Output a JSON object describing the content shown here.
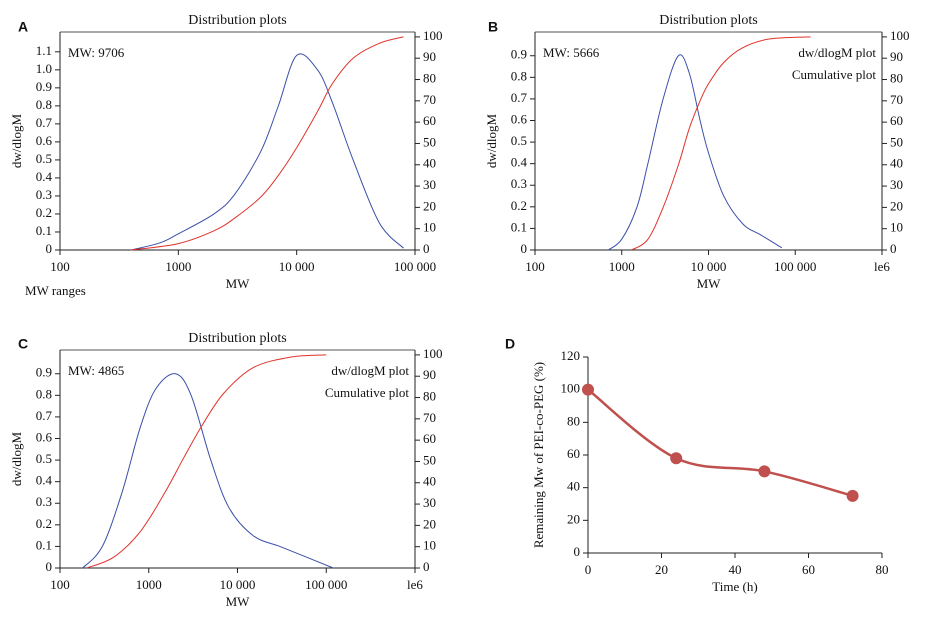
{
  "chart_data": [
    {
      "label": "A",
      "type": "line",
      "title": "Distribution plots",
      "annotation": "MW: 9706",
      "footnote": "MW ranges",
      "x_label": "MW",
      "y_label": "dw/dlogM",
      "log_x": true,
      "xlim": [
        100,
        100000
      ],
      "xticks": [
        100,
        1000,
        {
          "value": 10000,
          "label": "10 000"
        },
        {
          "value": 100000,
          "label": "100 000"
        }
      ],
      "ylim": [
        0,
        1.21
      ],
      "yticks": [
        0,
        0.1,
        0.2,
        0.3,
        0.4,
        0.5,
        0.6,
        0.7,
        0.8,
        0.9,
        {
          "value": 1,
          "label": "1.0"
        },
        1.1
      ],
      "y2lim": [
        0,
        102.3
      ],
      "y2ticks": [
        0,
        10,
        20,
        30,
        40,
        50,
        60,
        70,
        80,
        90,
        100
      ],
      "series": [
        {
          "color": "#3a4fa8",
          "x": [
            400,
            700,
            1000,
            2000,
            3000,
            5000,
            7000,
            10000,
            15000,
            20000,
            30000,
            50000,
            80000
          ],
          "values": [
            0,
            0.04,
            0.09,
            0.2,
            0.31,
            0.55,
            0.8,
            1.08,
            1.0,
            0.82,
            0.5,
            0.15,
            0.01
          ]
        },
        {
          "color": "#e0322b",
          "axis": "y2",
          "x": [
            400,
            1000,
            2000,
            3000,
            5000,
            7000,
            10000,
            15000,
            20000,
            30000,
            50000,
            80000
          ],
          "values": [
            0,
            3,
            9,
            15,
            25,
            35,
            48,
            65,
            78,
            90,
            97,
            100
          ]
        }
      ]
    },
    {
      "label": "B",
      "type": "line",
      "title": "Distribution plots",
      "annotation": "MW: 5666",
      "x_label": "MW",
      "y_label": "dw/dlogM",
      "log_x": true,
      "xlim": [
        100,
        1000000
      ],
      "xticks": [
        100,
        1000,
        {
          "value": 10000,
          "label": "10 000"
        },
        {
          "value": 100000,
          "label": "100 000"
        },
        {
          "value": 1000000,
          "label": "le6"
        }
      ],
      "ylim": [
        0,
        1.01
      ],
      "yticks": [
        0,
        0.1,
        0.2,
        0.3,
        0.4,
        0.5,
        0.6,
        0.7,
        0.8,
        0.9
      ],
      "y2lim": [
        0,
        102.3
      ],
      "y2ticks": [
        0,
        10,
        20,
        30,
        40,
        50,
        60,
        70,
        80,
        90,
        100
      ],
      "series": [
        {
          "name": "dw/dlogM plot",
          "color": "#3a4fa8",
          "x": [
            700,
            1000,
            1500,
            2000,
            3000,
            4500,
            6000,
            8000,
            10000,
            15000,
            25000,
            40000,
            70000
          ],
          "values": [
            0,
            0.05,
            0.2,
            0.4,
            0.7,
            0.9,
            0.82,
            0.6,
            0.45,
            0.25,
            0.12,
            0.07,
            0.01
          ]
        },
        {
          "name": "Cumulative plot",
          "color": "#e0322b",
          "axis": "y2",
          "x": [
            1300,
            2000,
            3000,
            4500,
            6000,
            8000,
            10000,
            15000,
            25000,
            50000,
            150000
          ],
          "values": [
            0,
            5,
            20,
            40,
            57,
            70,
            78,
            88,
            95,
            99,
            100
          ]
        }
      ]
    },
    {
      "label": "C",
      "type": "line",
      "title": "Distribution plots",
      "annotation": "MW: 4865",
      "x_label": "MW",
      "y_label": "dw/dlogM",
      "log_x": true,
      "xlim": [
        100,
        1000000
      ],
      "xticks": [
        100,
        1000,
        {
          "value": 10000,
          "label": "10 000"
        },
        {
          "value": 100000,
          "label": "100 000"
        },
        {
          "value": 1000000,
          "label": "le6"
        }
      ],
      "ylim": [
        0,
        1.01
      ],
      "yticks": [
        0,
        0.1,
        0.2,
        0.3,
        0.4,
        0.5,
        0.6,
        0.7,
        0.8,
        0.9
      ],
      "y2lim": [
        0,
        102.3
      ],
      "y2ticks": [
        0,
        10,
        20,
        30,
        40,
        50,
        60,
        70,
        80,
        90,
        100
      ],
      "series": [
        {
          "name": "dw/dlogM plot",
          "color": "#3a4fa8",
          "x": [
            180,
            300,
            500,
            800,
            1200,
            2000,
            3000,
            5000,
            8000,
            15000,
            30000,
            60000,
            120000
          ],
          "values": [
            0,
            0.1,
            0.35,
            0.65,
            0.83,
            0.9,
            0.8,
            0.5,
            0.28,
            0.15,
            0.1,
            0.05,
            0
          ]
        },
        {
          "name": "Cumulative plot",
          "color": "#e0322b",
          "axis": "y2",
          "x": [
            200,
            400,
            800,
            1500,
            2500,
            4000,
            7000,
            15000,
            40000,
            100000
          ],
          "values": [
            0,
            5,
            17,
            35,
            52,
            67,
            82,
            94,
            99,
            100
          ]
        }
      ]
    },
    {
      "label": "D",
      "type": "line",
      "x_label": "Time (h)",
      "y_label": "Remaining Mw of PEI-co-PEG (%)",
      "xlim": [
        0,
        80
      ],
      "xticks": [
        0,
        20,
        40,
        60,
        80
      ],
      "ylim": [
        0,
        120
      ],
      "yticks": [
        0,
        20,
        40,
        60,
        80,
        100,
        120
      ],
      "series": [
        {
          "color": "#c0504d",
          "markers": true,
          "x": [
            0,
            24,
            48,
            72
          ],
          "values": [
            100,
            58,
            50,
            35
          ]
        }
      ]
    }
  ]
}
